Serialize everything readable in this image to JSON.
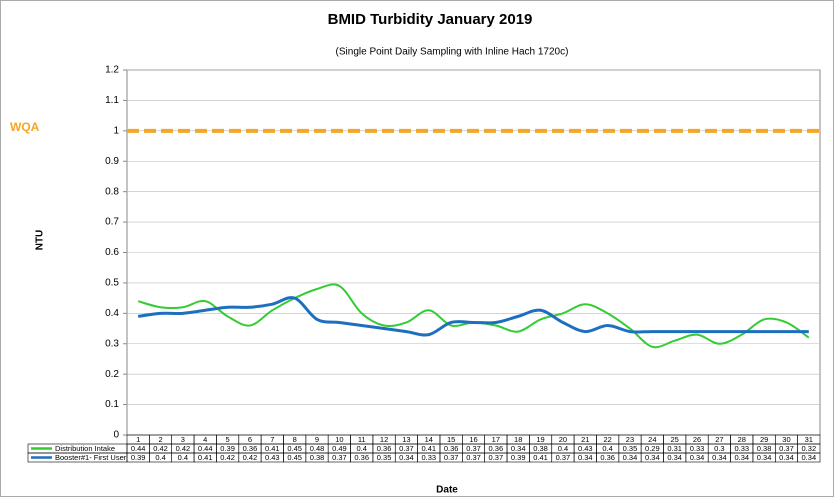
{
  "chart_data": {
    "type": "line",
    "title": "BMID Turbidity January 2019",
    "subtitle": "(Single Point Daily Sampling with Inline Hach 1720c)",
    "x_label": "Date",
    "y_label": "NTU",
    "categories": [
      "1",
      "2",
      "3",
      "4",
      "5",
      "6",
      "7",
      "8",
      "9",
      "10",
      "11",
      "12",
      "13",
      "14",
      "15",
      "16",
      "17",
      "18",
      "19",
      "20",
      "21",
      "22",
      "23",
      "24",
      "25",
      "26",
      "27",
      "28",
      "29",
      "30",
      "31"
    ],
    "series": [
      {
        "name": "Distribution Intake",
        "color": "#33cc33",
        "values": [
          0.44,
          0.42,
          0.42,
          0.44,
          0.39,
          0.36,
          0.41,
          0.45,
          0.48,
          0.49,
          0.4,
          0.36,
          0.37,
          0.41,
          0.36,
          0.37,
          0.36,
          0.34,
          0.38,
          0.4,
          0.43,
          0.4,
          0.35,
          0.29,
          0.31,
          0.33,
          0.3,
          0.33,
          0.38,
          0.37,
          0.32
        ]
      },
      {
        "name": "Booster#1- First User",
        "color": "#1f6fbf",
        "values": [
          0.39,
          0.4,
          0.4,
          0.41,
          0.42,
          0.42,
          0.43,
          0.45,
          0.38,
          0.37,
          0.36,
          0.35,
          0.34,
          0.33,
          0.37,
          0.37,
          0.37,
          0.39,
          0.41,
          0.37,
          0.34,
          0.36,
          0.34,
          0.34,
          0.34,
          0.34,
          0.34,
          0.34,
          0.34,
          0.34,
          0.34
        ]
      }
    ],
    "reference_line": {
      "label": "WQA",
      "value": 1,
      "color": "#f5a623"
    },
    "ylim": [
      0,
      1.2
    ],
    "yticks": [
      0,
      0.1,
      0.2,
      0.3,
      0.4,
      0.5,
      0.6,
      0.7,
      0.8,
      0.9,
      1,
      1.1,
      1.2
    ],
    "grid": true
  }
}
